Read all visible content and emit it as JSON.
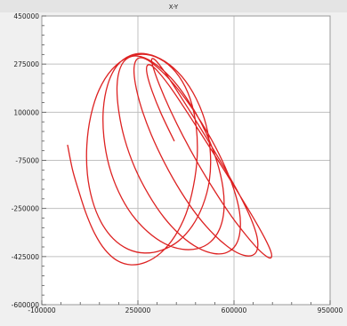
{
  "window": {
    "title": "X-Y"
  },
  "colors": {
    "series": "#dd2222",
    "grid": "#c0c0c0",
    "plot_background": "#ffffff",
    "frame": "#9a9a9a",
    "title_bar": "#e4e4e4"
  },
  "chart_data": {
    "type": "line",
    "title": "X-Y",
    "xlabel": "",
    "ylabel": "",
    "xlim": [
      -100000,
      950000
    ],
    "ylim": [
      -600000,
      450000
    ],
    "x_ticks": [
      -100000,
      250000,
      600000,
      950000
    ],
    "y_ticks": [
      -600000,
      -425000,
      -250000,
      -75000,
      100000,
      275000,
      450000
    ],
    "x_tick_labels": [
      "-100000",
      "250000",
      "600000",
      "950000"
    ],
    "y_tick_labels": [
      "-600000",
      "-425000",
      "-250000",
      "-75000",
      "100000",
      "275000",
      "450000"
    ],
    "grid": true,
    "legend": false,
    "series": [
      {
        "curve": "helix-projection",
        "x": [
          -6000,
          12000,
          34000,
          60000,
          92000,
          130000,
          175000,
          225000,
          280000,
          335000,
          385000,
          425000,
          452000,
          466000,
          462000,
          440000,
          400000,
          345000,
          280000,
          215000,
          155000,
          108000,
          78000,
          64000,
          66000,
          84000,
          116000,
          160000,
          214000,
          274000,
          336000,
          396000,
          447000,
          486000,
          510000,
          514000,
          498000,
          462000,
          410000,
          348000,
          282000,
          222000,
          173000,
          140000,
          124000,
          126000,
          145000,
          180000,
          228000,
          286000,
          348000,
          410000,
          467000,
          514000,
          547000,
          563000,
          560000,
          538000,
          498000,
          444000,
          382000,
          318000,
          261000,
          215000,
          186000,
          174000,
          180000,
          201000,
          238000,
          288000,
          346000,
          408000,
          470000,
          527000,
          574000,
          607000,
          622000,
          620000,
          598000,
          558000,
          504000,
          442000,
          379000,
          322000,
          277000,
          248000,
          236000,
          241000,
          262000,
          298000,
          348000,
          406000,
          468000,
          530000,
          587000,
          634000,
          668000,
          685000,
          684000,
          662000,
          622000,
          567000,
          505000,
          442000,
          386000,
          342000,
          313000,
          300000,
          306000,
          328000,
          365000,
          414000,
          471000,
          532000,
          592000,
          646000,
          690000,
          721000,
          736000,
          734000,
          712000,
          674000,
          622000,
          560000,
          495000,
          432000,
          376000,
          330000,
          299000,
          283000,
          284000,
          302000,
          335000,
          382000
        ],
        "y": [
          -20000,
          -110000,
          -185000,
          -265000,
          -340000,
          -400000,
          -440000,
          -455000,
          -445000,
          -410000,
          -350000,
          -270000,
          -170000,
          -60000,
          50000,
          150000,
          230000,
          285000,
          310000,
          300000,
          255000,
          180000,
          85000,
          -20000,
          -125000,
          -220000,
          -300000,
          -360000,
          -398000,
          -412000,
          -402000,
          -370000,
          -315000,
          -240000,
          -150000,
          -50000,
          55000,
          150000,
          230000,
          285000,
          312000,
          306000,
          268000,
          200000,
          110000,
          10000,
          -95000,
          -190000,
          -272000,
          -335000,
          -378000,
          -398000,
          -396000,
          -372000,
          -326000,
          -260000,
          -176000,
          -80000,
          25000,
          125000,
          212000,
          272000,
          302000,
          298000,
          262000,
          195000,
          106000,
          5000,
          -100000,
          -198000,
          -284000,
          -350000,
          -394000,
          -414000,
          -410000,
          -382000,
          -332000,
          -262000,
          -176000,
          -78000,
          25000,
          122000,
          204000,
          262000,
          294000,
          294000,
          262000,
          202000,
          118000,
          20000,
          -86000,
          -188000,
          -278000,
          -348000,
          -396000,
          -420000,
          -420000,
          -398000,
          -354000,
          -288000,
          -204000,
          -106000,
          -2000,
          100000,
          188000,
          254000,
          290000,
          292000,
          262000,
          200000,
          114000,
          14000,
          -90000,
          -190000,
          -280000,
          -350000,
          -400000,
          -426000,
          -428000,
          -406000,
          -358000,
          -290000,
          -204000,
          -104000,
          -2000,
          96000,
          180000,
          240000,
          270000,
          268000,
          236000,
          176000,
          94000,
          -4000
        ]
      }
    ]
  }
}
